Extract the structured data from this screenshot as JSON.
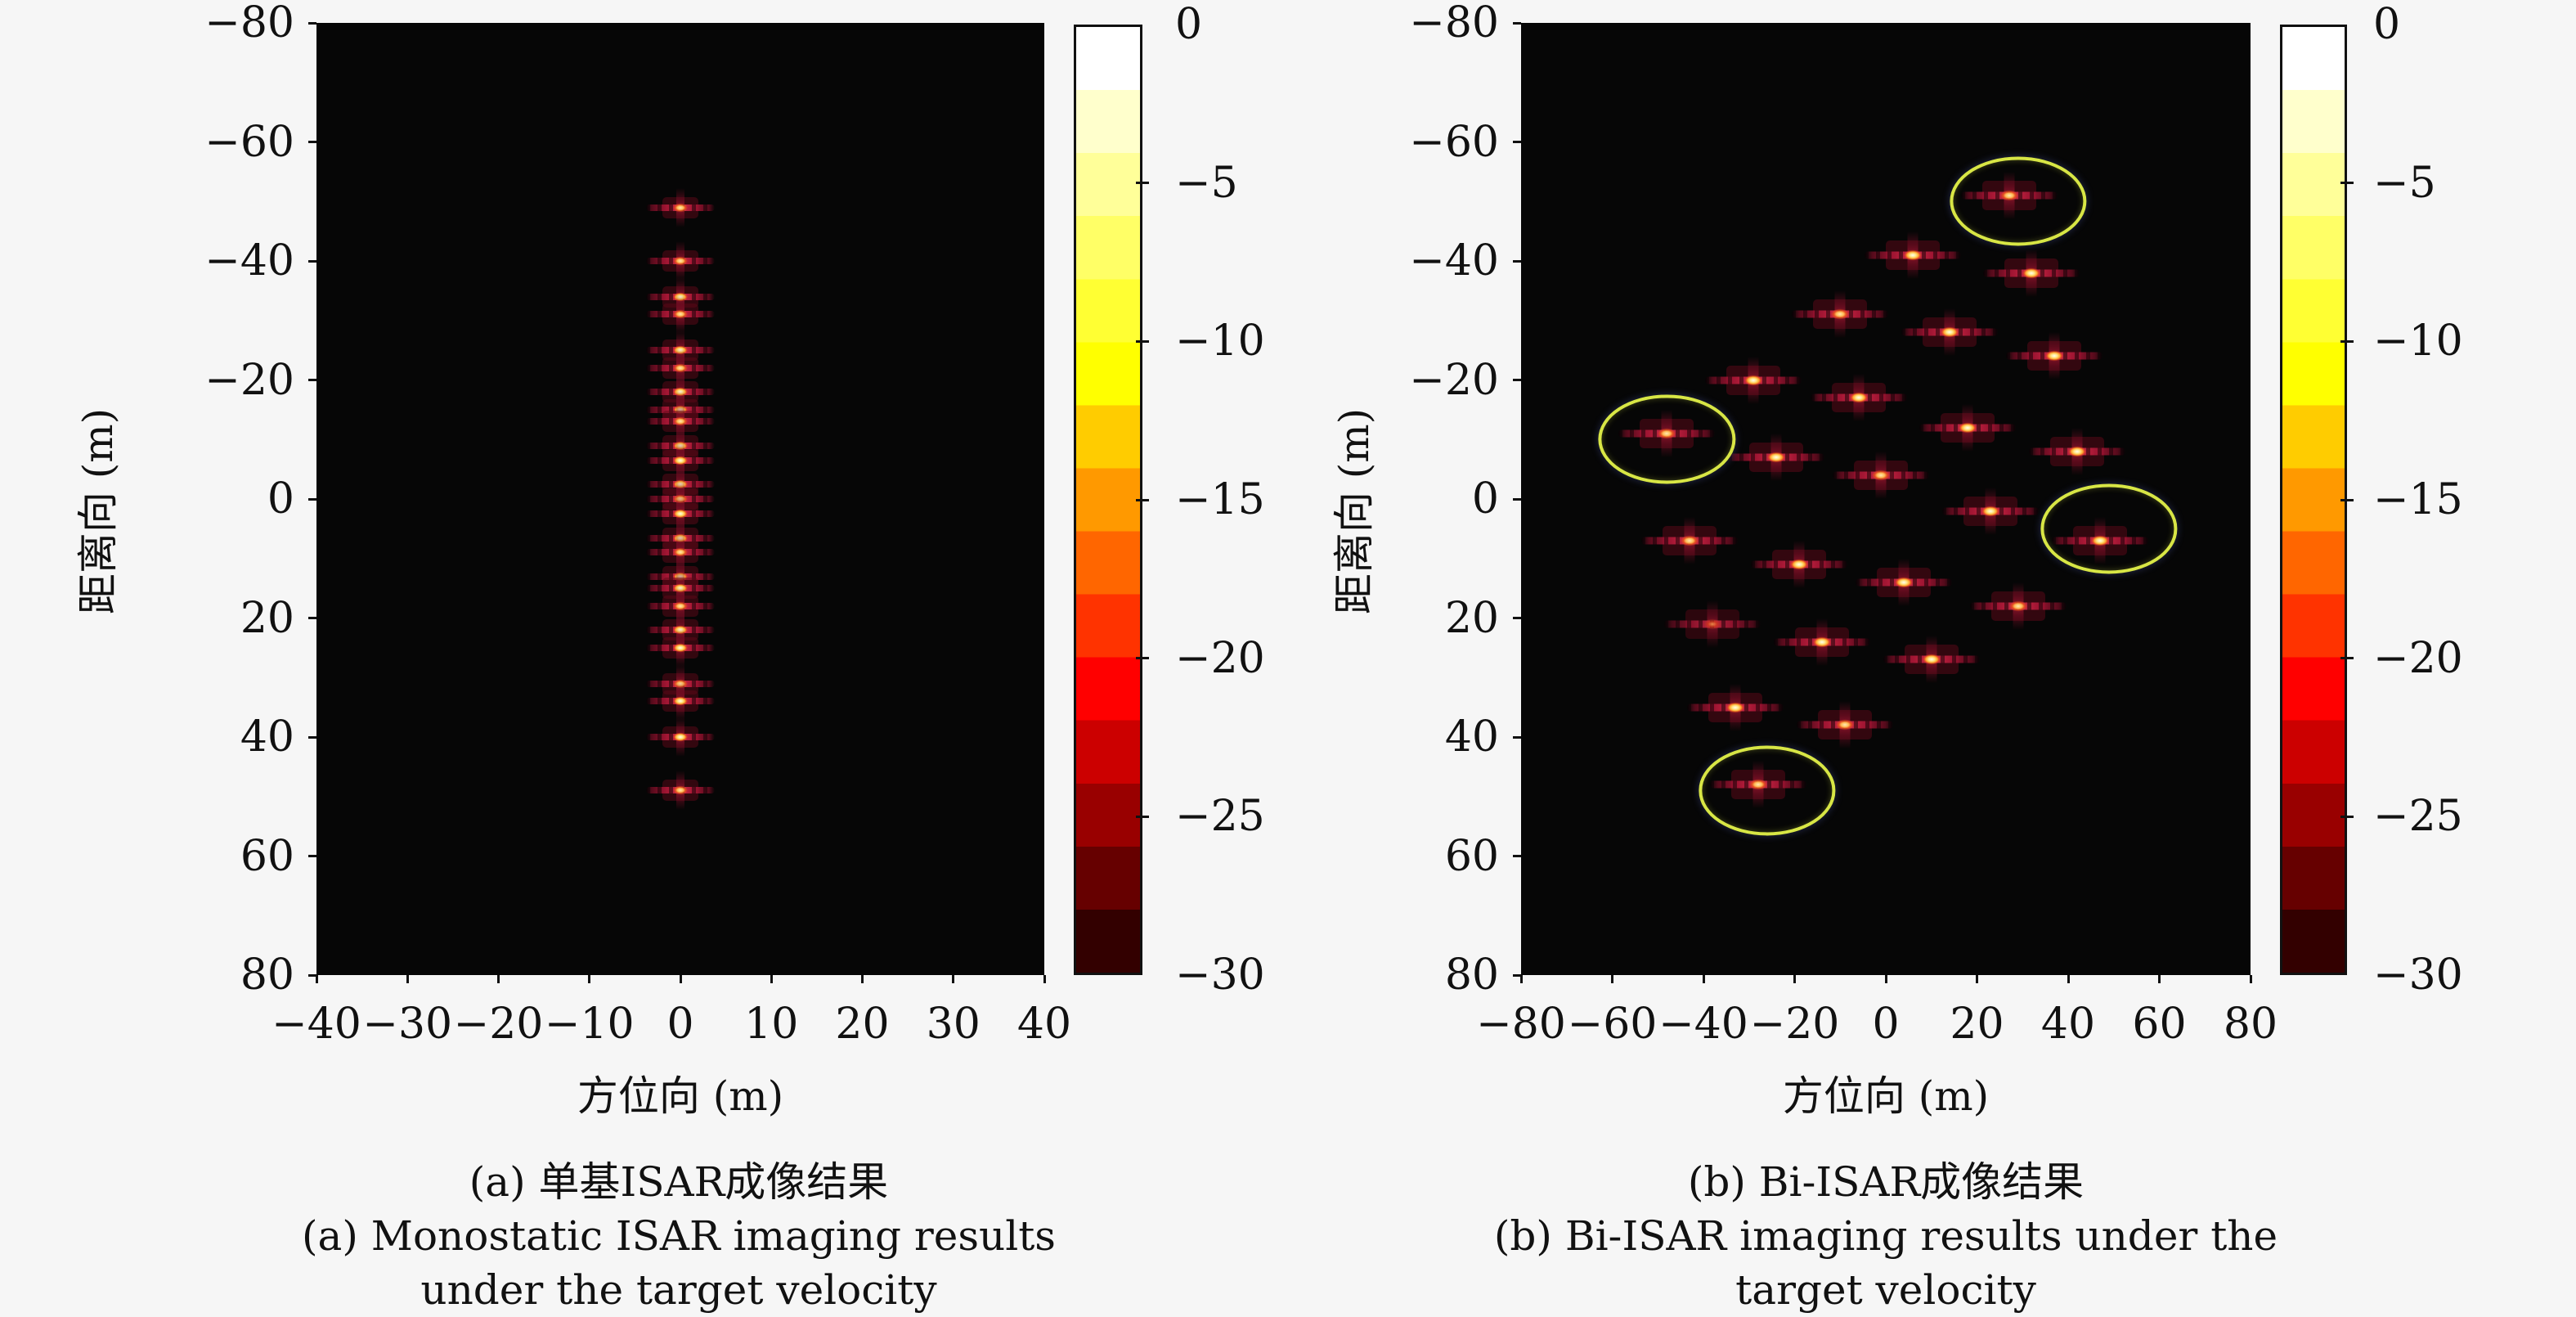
{
  "figure": {
    "background": "#f6f6f6",
    "plot_background": "#060606",
    "ellipse_color": "#d8e645",
    "colorbar": {
      "max": 0,
      "min": -30,
      "ticks": [
        0,
        -5,
        -10,
        -15,
        -20,
        -25,
        -30
      ],
      "colormap": "hot-reversed",
      "colors": [
        "#ffffff",
        "#ffffcc",
        "#ffff99",
        "#ffff66",
        "#ffff33",
        "#ffff00",
        "#ffcc00",
        "#ff9900",
        "#ff6600",
        "#ff3300",
        "#ff0000",
        "#cc0000",
        "#990000",
        "#660000",
        "#330000"
      ]
    },
    "panels": [
      {
        "id": "a",
        "xlabel": "方位向 (m)",
        "ylabel": "距离向 (m)",
        "x_ticks": [
          -40,
          -30,
          -20,
          -10,
          0,
          10,
          20,
          30,
          40
        ],
        "y_ticks": [
          -80,
          -60,
          -40,
          -20,
          0,
          20,
          40,
          60,
          80
        ],
        "caption_zh": "(a) 单基ISAR成像结果",
        "caption_en_1": "(a) Monostatic ISAR imaging results",
        "caption_en_2": "under the target velocity",
        "chart_data": {
          "type": "scatter",
          "xlabel": "方位向 (m)",
          "ylabel": "距离向 (m)",
          "xlim": [
            -40,
            40
          ],
          "ylim": [
            -80,
            80
          ],
          "y_axis_reversed": true,
          "intensity_scale_dB": [
            0,
            -30
          ],
          "points": [
            {
              "x": 0,
              "y": -49,
              "i": 1
            },
            {
              "x": 0,
              "y": -40,
              "i": 1
            },
            {
              "x": 0,
              "y": -34,
              "i": 2
            },
            {
              "x": 0,
              "y": -31,
              "i": 1
            },
            {
              "x": 0,
              "y": -25,
              "i": 2
            },
            {
              "x": 0,
              "y": -22,
              "i": 1
            },
            {
              "x": 0,
              "y": -18,
              "i": 2
            },
            {
              "x": 0,
              "y": -15,
              "i": 2
            },
            {
              "x": 0,
              "y": -13,
              "i": 1
            },
            {
              "x": 0,
              "y": -9,
              "i": 2
            },
            {
              "x": 0,
              "y": -6.5,
              "i": 2
            },
            {
              "x": 0,
              "y": -2.5,
              "i": 2
            },
            {
              "x": 0,
              "y": 0,
              "i": 1
            },
            {
              "x": 0,
              "y": 2.5,
              "i": 2
            },
            {
              "x": 0,
              "y": 6.6,
              "i": 2
            },
            {
              "x": 0,
              "y": 9,
              "i": 1
            },
            {
              "x": 0,
              "y": 13,
              "i": 2
            },
            {
              "x": 0,
              "y": 15,
              "i": 2
            },
            {
              "x": 0,
              "y": 18,
              "i": 1
            },
            {
              "x": 0,
              "y": 22,
              "i": 2
            },
            {
              "x": 0,
              "y": 25,
              "i": 2
            },
            {
              "x": 0,
              "y": 31,
              "i": 1
            },
            {
              "x": 0,
              "y": 34,
              "i": 2
            },
            {
              "x": 0,
              "y": 40,
              "i": 2
            },
            {
              "x": 0,
              "y": 49,
              "i": 1
            }
          ],
          "ellipses": []
        }
      },
      {
        "id": "b",
        "xlabel": "方位向 (m)",
        "ylabel": "距离向 (m)",
        "x_ticks": [
          -80,
          -60,
          -40,
          -20,
          0,
          20,
          40,
          60,
          80
        ],
        "y_ticks": [
          -80,
          -60,
          -40,
          -20,
          0,
          20,
          40,
          60,
          80
        ],
        "caption_zh": "(b) Bi-ISAR成像结果",
        "caption_en_1": "(b) Bi-ISAR imaging results under the",
        "caption_en_2": "target velocity",
        "chart_data": {
          "type": "scatter",
          "xlabel": "方位向 (m)",
          "ylabel": "距离向 (m)",
          "xlim": [
            -80,
            80
          ],
          "ylim": [
            -80,
            80
          ],
          "y_axis_reversed": true,
          "intensity_scale_dB": [
            0,
            -30
          ],
          "points": [
            {
              "x": 27,
              "y": -51,
              "i": 1
            },
            {
              "x": 6,
              "y": -41,
              "i": 2
            },
            {
              "x": 32,
              "y": -38,
              "i": 2
            },
            {
              "x": -10,
              "y": -31,
              "i": 1
            },
            {
              "x": 14,
              "y": -28,
              "i": 2
            },
            {
              "x": 37,
              "y": -24,
              "i": 2
            },
            {
              "x": -29,
              "y": -20,
              "i": 2
            },
            {
              "x": -6,
              "y": -17,
              "i": 2
            },
            {
              "x": 18,
              "y": -12,
              "i": 2
            },
            {
              "x": -48,
              "y": -11,
              "i": 1
            },
            {
              "x": 42,
              "y": -8,
              "i": 2
            },
            {
              "x": -24,
              "y": -7,
              "i": 2
            },
            {
              "x": -1,
              "y": -4,
              "i": 1
            },
            {
              "x": 23,
              "y": 2,
              "i": 2
            },
            {
              "x": 47,
              "y": 7,
              "i": 2
            },
            {
              "x": -43,
              "y": 7,
              "i": 1
            },
            {
              "x": -19,
              "y": 11,
              "i": 2
            },
            {
              "x": 4,
              "y": 14,
              "i": 2
            },
            {
              "x": 29,
              "y": 18,
              "i": 1
            },
            {
              "x": -38,
              "y": 21,
              "i": 0
            },
            {
              "x": -14,
              "y": 24,
              "i": 2
            },
            {
              "x": 10,
              "y": 27,
              "i": 2
            },
            {
              "x": -33,
              "y": 35,
              "i": 2
            },
            {
              "x": -9,
              "y": 38,
              "i": 1
            },
            {
              "x": -28,
              "y": 48,
              "i": 1
            }
          ],
          "ellipses": [
            {
              "cx": 29,
              "cy": -50,
              "rx": 15,
              "ry": 7.5
            },
            {
              "cx": -48,
              "cy": -10,
              "rx": 15,
              "ry": 7.5
            },
            {
              "cx": 49,
              "cy": 5,
              "rx": 15,
              "ry": 7.5
            },
            {
              "cx": -26,
              "cy": 49,
              "rx": 15,
              "ry": 7.5
            }
          ]
        }
      }
    ]
  }
}
